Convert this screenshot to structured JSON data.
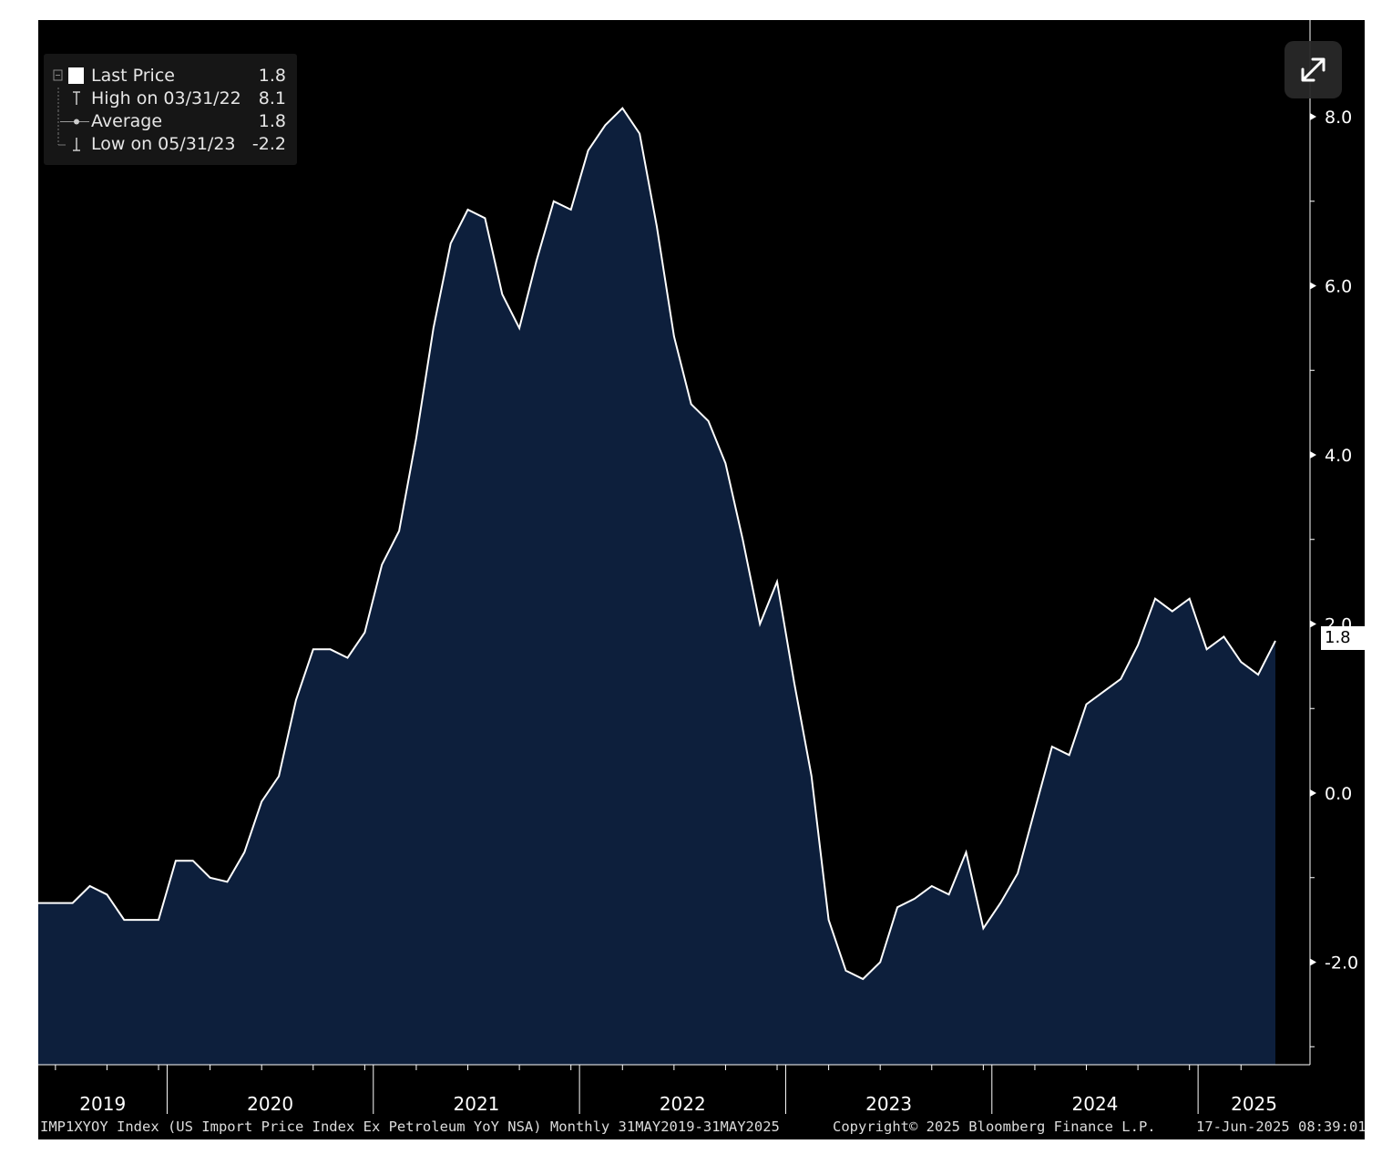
{
  "chart_data": {
    "type": "area",
    "series": [
      {
        "name": "Last Price",
        "x": [
          "2019-05",
          "2019-06",
          "2019-07",
          "2019-08",
          "2019-09",
          "2019-10",
          "2019-11",
          "2019-12",
          "2020-01",
          "2020-02",
          "2020-03",
          "2020-04",
          "2020-05",
          "2020-06",
          "2020-07",
          "2020-08",
          "2020-09",
          "2020-10",
          "2020-11",
          "2020-12",
          "2021-01",
          "2021-02",
          "2021-03",
          "2021-04",
          "2021-05",
          "2021-06",
          "2021-07",
          "2021-08",
          "2021-09",
          "2021-10",
          "2021-11",
          "2021-12",
          "2022-01",
          "2022-02",
          "2022-03",
          "2022-04",
          "2022-05",
          "2022-06",
          "2022-07",
          "2022-08",
          "2022-09",
          "2022-10",
          "2022-11",
          "2022-12",
          "2023-01",
          "2023-02",
          "2023-03",
          "2023-04",
          "2023-05",
          "2023-06",
          "2023-07",
          "2023-08",
          "2023-09",
          "2023-10",
          "2023-11",
          "2023-12",
          "2024-01",
          "2024-02",
          "2024-03",
          "2024-04",
          "2024-05",
          "2024-06",
          "2024-07",
          "2024-08",
          "2024-09",
          "2024-10",
          "2024-11",
          "2024-12",
          "2025-01",
          "2025-02",
          "2025-03",
          "2025-04",
          "2025-05"
        ],
        "values": [
          -1.3,
          -1.3,
          -1.3,
          -1.1,
          -1.2,
          -1.5,
          -1.5,
          -1.5,
          -0.8,
          -0.8,
          -1.0,
          -1.05,
          -0.7,
          -0.1,
          0.2,
          1.1,
          1.7,
          1.7,
          1.6,
          1.9,
          2.7,
          3.1,
          4.2,
          5.5,
          6.5,
          6.9,
          6.8,
          5.9,
          5.5,
          6.3,
          7.0,
          6.9,
          7.6,
          7.9,
          8.1,
          7.8,
          6.7,
          5.4,
          4.6,
          4.4,
          3.9,
          3.0,
          2.0,
          2.5,
          1.3,
          0.2,
          -1.5,
          -2.1,
          -2.2,
          -2.0,
          -1.35,
          -1.25,
          -1.1,
          -1.2,
          -0.7,
          -1.6,
          -1.3,
          -0.95,
          -0.2,
          0.55,
          0.45,
          1.05,
          1.2,
          1.35,
          1.75,
          2.3,
          2.15,
          2.3,
          1.7,
          1.85,
          1.55,
          1.4,
          1.8
        ]
      }
    ],
    "ylim": [
      -3.2,
      8.6
    ],
    "yticks": [
      "8.0",
      "6.0",
      "4.0",
      "2.0",
      "0.0",
      "-2.0"
    ],
    "ytick_values": [
      8.0,
      6.0,
      4.0,
      2.0,
      0.0,
      -2.0
    ],
    "xtick_labels": [
      "2019",
      "2020",
      "2021",
      "2022",
      "2023",
      "2024",
      "2025"
    ],
    "legend_position": "top-left",
    "grid": false,
    "colors": {
      "background": "#000000",
      "area_fill": "#0d1f3c",
      "line": "#ffffff"
    }
  },
  "legend": {
    "rows": [
      {
        "name": "Last Price",
        "value": "1.8"
      },
      {
        "name": "High on 03/31/22",
        "value": "8.1"
      },
      {
        "name": "Average",
        "value": "1.8"
      },
      {
        "name": "Low on 05/31/23",
        "value": "-2.2"
      }
    ]
  },
  "last_value_tag": "1.8",
  "footer": {
    "index_desc": "IMP1XYOY Index (US Import Price Index Ex Petroleum YoY NSA)  Monthly 31MAY2019-31MAY2025",
    "copyright": "Copyright© 2025 Bloomberg Finance L.P.",
    "timestamp": "17-Jun-2025 08:39:01"
  },
  "expand_icon": "expand-icon"
}
